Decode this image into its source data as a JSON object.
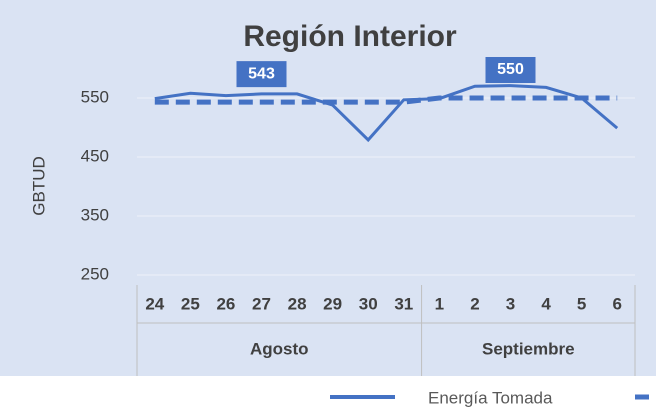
{
  "chart_data": {
    "type": "line",
    "title": "Región Interior",
    "y_label": "GBTUD",
    "categories": [
      "24",
      "25",
      "26",
      "27",
      "28",
      "29",
      "30",
      "31",
      "1",
      "2",
      "3",
      "4",
      "5",
      "6"
    ],
    "groups": [
      {
        "label": "Agosto",
        "count": 8
      },
      {
        "label": "Septiembre",
        "count": 6
      }
    ],
    "series": [
      {
        "name": "Energía Tomada",
        "color": "#4472c4",
        "dashed": false,
        "values": [
          549,
          558,
          554,
          557,
          557,
          538,
          479,
          547,
          549,
          570,
          571,
          568,
          550,
          499
        ]
      },
      {
        "color": "#4472c4",
        "dashed": true,
        "values": [
          543,
          543,
          543,
          543,
          543,
          543,
          543,
          543,
          550,
          550,
          550,
          550,
          550,
          550
        ],
        "value_labels": [
          null,
          null,
          null,
          "543",
          null,
          null,
          null,
          null,
          null,
          null,
          "550",
          null,
          null,
          null
        ]
      }
    ],
    "ylim": [
      250,
      650
    ],
    "yticks": [
      250,
      350,
      450,
      550
    ],
    "grid": true
  }
}
